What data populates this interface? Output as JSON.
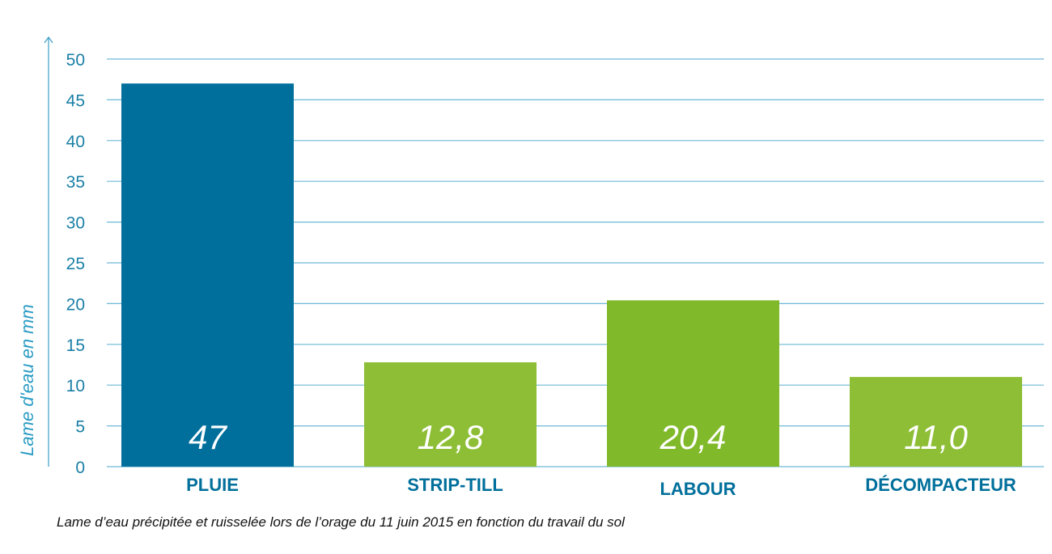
{
  "chart_data": {
    "type": "bar",
    "title": "",
    "caption": "Lame d’eau précipitée et ruisselée lors de l’orage du 11 juin 2015 en fonction du travail du sol",
    "xlabel": "",
    "ylabel": "Lame d'eau en mm",
    "ylim": [
      0,
      50
    ],
    "yticks": [
      0,
      5,
      10,
      15,
      20,
      25,
      30,
      35,
      40,
      45,
      50
    ],
    "grid": true,
    "categories": [
      "PLUIE",
      "STRIP-TILL",
      "LABOUR",
      "DÉCOMPACTEUR"
    ],
    "values": [
      47,
      12.8,
      20.4,
      11.0
    ],
    "data_labels": [
      "47",
      "12,8",
      "20,4",
      "11,0"
    ],
    "colors": [
      "#006f9b",
      "#8dbe35",
      "#80b929",
      "#8dbe35"
    ],
    "grid_color": "#6db8d6",
    "axis_color": "#3a9ec6"
  }
}
